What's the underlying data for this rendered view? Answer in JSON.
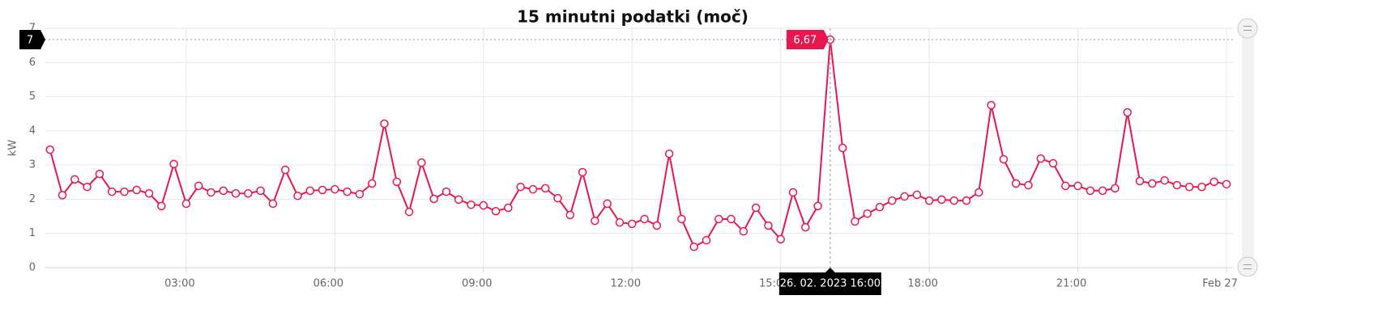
{
  "chart_data": {
    "type": "line",
    "title": "15 minutni podatki (moč)",
    "y_label": "kW",
    "x": [
      0.25,
      0.5,
      0.75,
      1,
      1.25,
      1.5,
      1.75,
      2,
      2.25,
      2.5,
      2.75,
      3,
      3.25,
      3.5,
      3.75,
      4,
      4.25,
      4.5,
      4.75,
      5,
      5.25,
      5.5,
      5.75,
      6,
      6.25,
      6.5,
      6.75,
      7,
      7.25,
      7.5,
      7.75,
      8,
      8.25,
      8.5,
      8.75,
      9,
      9.25,
      9.5,
      9.75,
      10,
      10.25,
      10.5,
      10.75,
      11,
      11.25,
      11.5,
      11.75,
      12,
      12.25,
      12.5,
      12.75,
      13,
      13.25,
      13.5,
      13.75,
      14,
      14.25,
      14.5,
      14.75,
      15,
      15.25,
      15.5,
      15.75,
      16,
      16.25,
      16.5,
      16.75,
      17,
      17.25,
      17.5,
      17.75,
      18,
      18.25,
      18.5,
      18.75,
      19,
      19.25,
      19.5,
      19.75,
      20,
      20.25,
      20.5,
      20.75,
      21,
      21.25,
      21.5,
      21.75,
      22,
      22.25,
      22.5,
      22.75,
      23,
      23.25,
      23.5,
      23.75,
      24
    ],
    "series": [
      {
        "color": "#e8174f",
        "values": [
          3.45,
          2.12,
          2.58,
          2.36,
          2.74,
          2.22,
          2.22,
          2.27,
          2.17,
          1.8,
          3.03,
          1.87,
          2.39,
          2.2,
          2.25,
          2.17,
          2.17,
          2.25,
          1.87,
          2.86,
          2.1,
          2.25,
          2.27,
          2.29,
          2.22,
          2.15,
          2.46,
          4.21,
          2.51,
          1.63,
          3.07,
          2.01,
          2.22,
          1.99,
          1.84,
          1.82,
          1.65,
          1.75,
          2.36,
          2.29,
          2.32,
          2.03,
          1.54,
          2.79,
          1.37,
          1.87,
          1.32,
          1.28,
          1.42,
          1.23,
          3.33,
          1.42,
          0.61,
          0.8,
          1.42,
          1.42,
          1.06,
          1.75,
          1.23,
          0.83,
          2.2,
          1.18,
          1.8,
          6.67,
          3.5,
          1.35,
          1.58,
          1.77,
          1.96,
          2.08,
          2.13,
          1.96,
          1.99,
          1.96,
          1.96,
          2.2,
          4.75,
          3.17,
          2.46,
          2.41,
          3.19,
          3.05,
          2.39,
          2.39,
          2.25,
          2.25,
          2.32,
          4.54,
          2.53,
          2.46,
          2.55,
          2.41,
          2.36,
          2.36,
          2.51,
          2.44
        ],
        "value_labels": [
          null,
          null,
          null,
          null,
          null,
          null,
          null,
          null,
          null,
          null,
          null,
          null,
          null,
          null,
          null,
          null,
          null,
          null,
          null,
          null,
          null,
          null,
          null,
          null,
          null,
          null,
          null,
          null,
          null,
          null,
          null,
          null,
          null,
          null,
          null,
          null,
          null,
          null,
          null,
          null,
          null,
          null,
          null,
          null,
          null,
          null,
          null,
          null,
          null,
          null,
          null,
          null,
          null,
          null,
          null,
          null,
          null,
          null,
          null,
          null,
          null,
          null,
          null,
          "6,67",
          null,
          null,
          null,
          null,
          null,
          null,
          null,
          null,
          null,
          null,
          null,
          null,
          null,
          null,
          null,
          null,
          null,
          null,
          null,
          null,
          null,
          null,
          null,
          null,
          null,
          null,
          null,
          null,
          null,
          null,
          null,
          null
        ]
      }
    ],
    "crosshair_x_label": "26. 02. 2023 16:00",
    "crosshair_y_label": "7",
    "xlim": [
      0.14,
      24.13
    ],
    "xticks": [
      {
        "value": 3,
        "label": "03:00"
      },
      {
        "value": 6,
        "label": "06:00"
      },
      {
        "value": 9,
        "label": "09:00"
      },
      {
        "value": 12,
        "label": "12:00"
      },
      {
        "value": 15,
        "label": "15:00"
      },
      {
        "value": 18,
        "label": "18:00"
      },
      {
        "value": 21,
        "label": "21:00"
      },
      {
        "value": 24,
        "label": "Feb 27"
      }
    ],
    "ylim": [
      0,
      7
    ],
    "yticks": [
      0,
      1,
      2,
      3,
      4,
      5,
      6,
      7
    ],
    "grid": true
  }
}
